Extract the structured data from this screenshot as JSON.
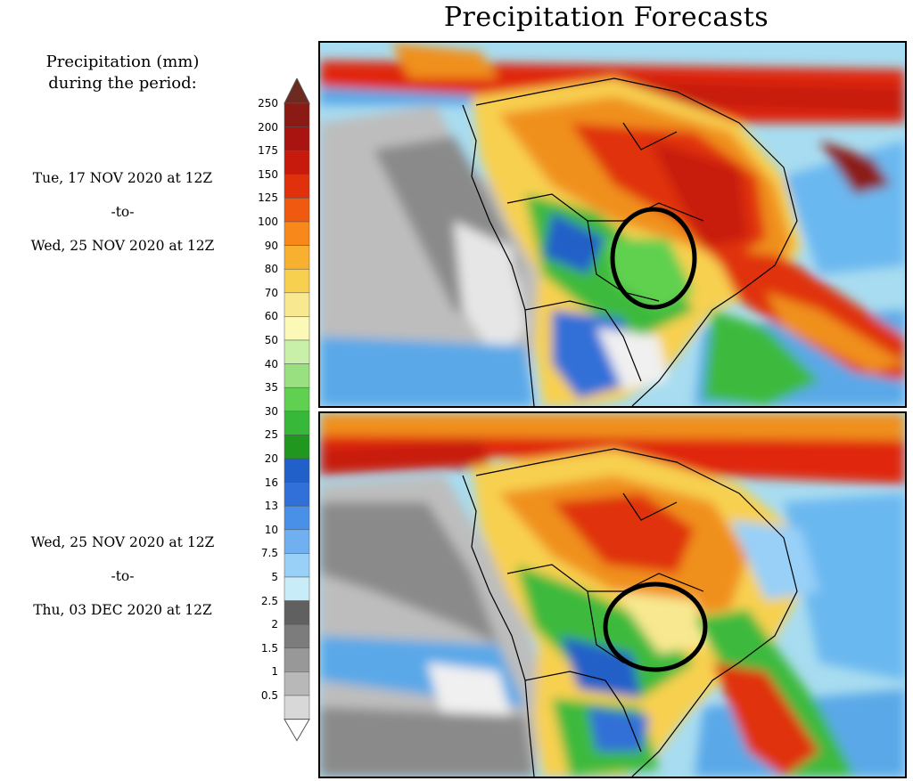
{
  "title": "Precipitation Forecasts",
  "legend": {
    "title_line1": "Precipitation (mm)",
    "title_line2": "during the period:",
    "ticks": [
      "250",
      "200",
      "175",
      "150",
      "125",
      "100",
      "90",
      "80",
      "70",
      "60",
      "50",
      "40",
      "35",
      "30",
      "25",
      "20",
      "16",
      "13",
      "10",
      "7.5",
      "5",
      "2.5",
      "2",
      "1.5",
      "1",
      "0.5"
    ],
    "colors": [
      "#6e2a1e",
      "#8c1a14",
      "#aa1410",
      "#c81a0c",
      "#e0300c",
      "#f05a10",
      "#f8881a",
      "#f8b030",
      "#f8d050",
      "#f8e890",
      "#fcf8b8",
      "#c8f0a8",
      "#98e080",
      "#60d050",
      "#38b838",
      "#209820",
      "#2060c8",
      "#3070d8",
      "#4890e8",
      "#70b0f0",
      "#98d0f8",
      "#c8ecf8",
      "#606060",
      "#7c7c7c",
      "#989898",
      "#b8b8b8",
      "#d8d8d8"
    ]
  },
  "periods": [
    {
      "start": "Tue, 17 NOV 2020 at 12Z",
      "sep": "-to-",
      "end": "Wed, 25 NOV 2020 at 12Z"
    },
    {
      "start": "Wed, 25 NOV 2020 at 12Z",
      "sep": "-to-",
      "end": "Thu, 03 DEC 2020 at 12Z"
    }
  ],
  "colors": {
    "ocean_light": "#a8dcf0",
    "ocean_blue": "#5aa8e8",
    "dry_gray": "#8a8a8a",
    "green": "#3cba3c",
    "yellow": "#f8e070",
    "orange": "#f0901c",
    "red": "#d8200c",
    "dark_red": "#8c1a14"
  }
}
